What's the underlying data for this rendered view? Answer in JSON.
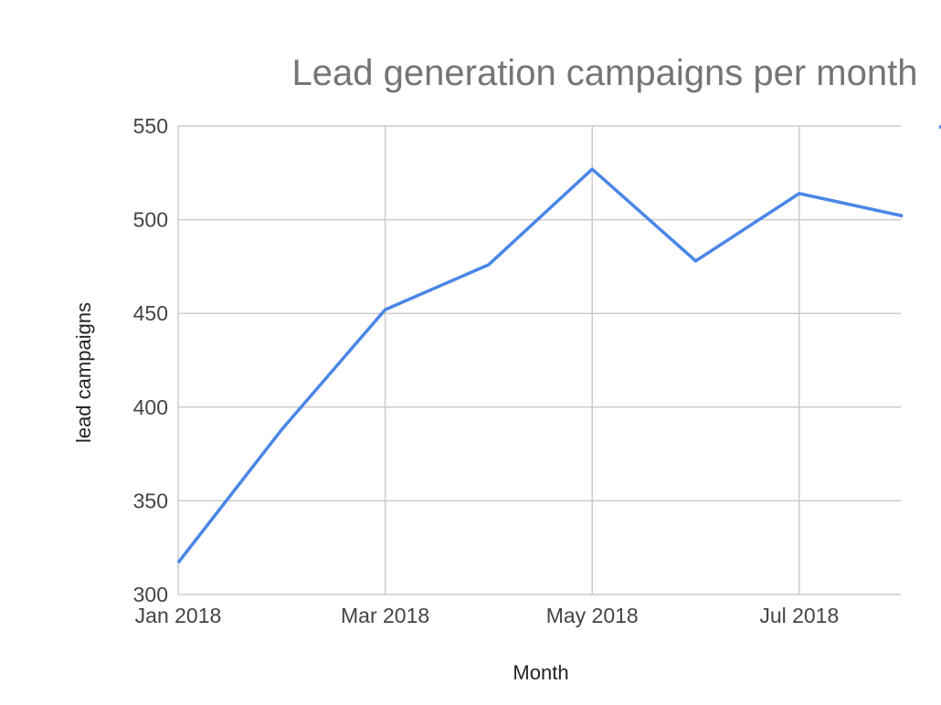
{
  "chart_data": {
    "type": "line",
    "title": "Lead generation campaigns per month",
    "xlabel": "Month",
    "ylabel": "lead campaigns",
    "x": [
      "2018-01",
      "2018-02",
      "2018-03",
      "2018-04",
      "2018-05",
      "2018-06",
      "2018-07",
      "2018-08"
    ],
    "x_tick_labels": [
      "Jan 2018",
      "Mar 2018",
      "May 2018",
      "Jul 2018"
    ],
    "x_tick_positions": [
      "2018-01",
      "2018-03",
      "2018-05",
      "2018-07"
    ],
    "y_ticks": [
      300,
      350,
      400,
      450,
      500,
      550
    ],
    "ylim": [
      300,
      550
    ],
    "grid": true,
    "legend": "right (cut off)",
    "series": [
      {
        "values": [
          317,
          388,
          452,
          476,
          527,
          478,
          514,
          502
        ],
        "color": "#4a86e8"
      }
    ]
  }
}
